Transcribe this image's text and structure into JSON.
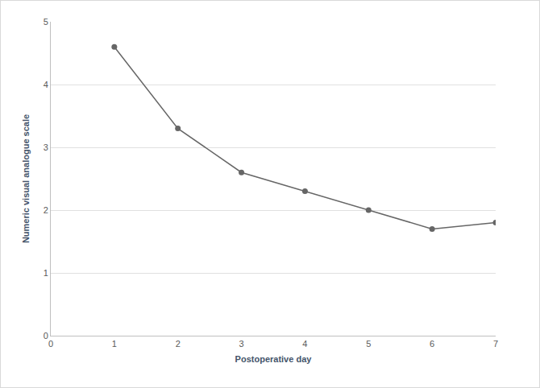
{
  "chart_data": {
    "type": "line",
    "x_label": "Postoperative day",
    "y_label": "Numeric visual analogue scale",
    "x": [
      1,
      2,
      3,
      4,
      5,
      6,
      7
    ],
    "values": [
      4.6,
      3.3,
      2.6,
      2.3,
      2.0,
      1.7,
      1.8
    ],
    "color": "#666666",
    "marker": "circle",
    "line_style": "solid",
    "xlim": [
      0,
      7
    ],
    "xticks": [
      0,
      1,
      2,
      3,
      4,
      5,
      6,
      7
    ],
    "ylim": [
      0,
      5
    ],
    "yticks": [
      0,
      1,
      2,
      3,
      4,
      5
    ],
    "grid": true
  }
}
